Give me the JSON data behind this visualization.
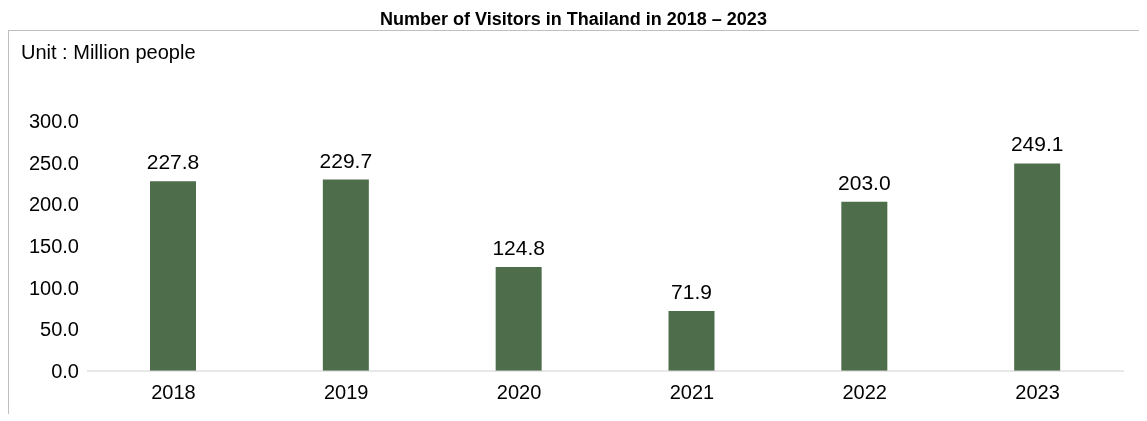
{
  "chart_data": {
    "type": "bar",
    "title": "Number of Visitors in Thailand in 2018 – 2023",
    "ylabel": "Unit : Million people",
    "categories": [
      "2018",
      "2019",
      "2020",
      "2021",
      "2022",
      "2023"
    ],
    "values": [
      227.8,
      229.7,
      124.8,
      71.9,
      203.0,
      249.1
    ],
    "value_labels": [
      "227.8",
      "229.7",
      "124.8",
      "71.9",
      "203.0",
      "249.1"
    ],
    "color": "#4e6d4a",
    "ylim": [
      0,
      300
    ],
    "yticks": [
      {
        "value": 0,
        "label": "0.0"
      },
      {
        "value": 50,
        "label": "50.0"
      },
      {
        "value": 100,
        "label": "100.0"
      },
      {
        "value": 150,
        "label": "150.0"
      },
      {
        "value": 200,
        "label": "200.0"
      },
      {
        "value": 250,
        "label": "250.0"
      },
      {
        "value": 300,
        "label": "300.0"
      }
    ]
  }
}
